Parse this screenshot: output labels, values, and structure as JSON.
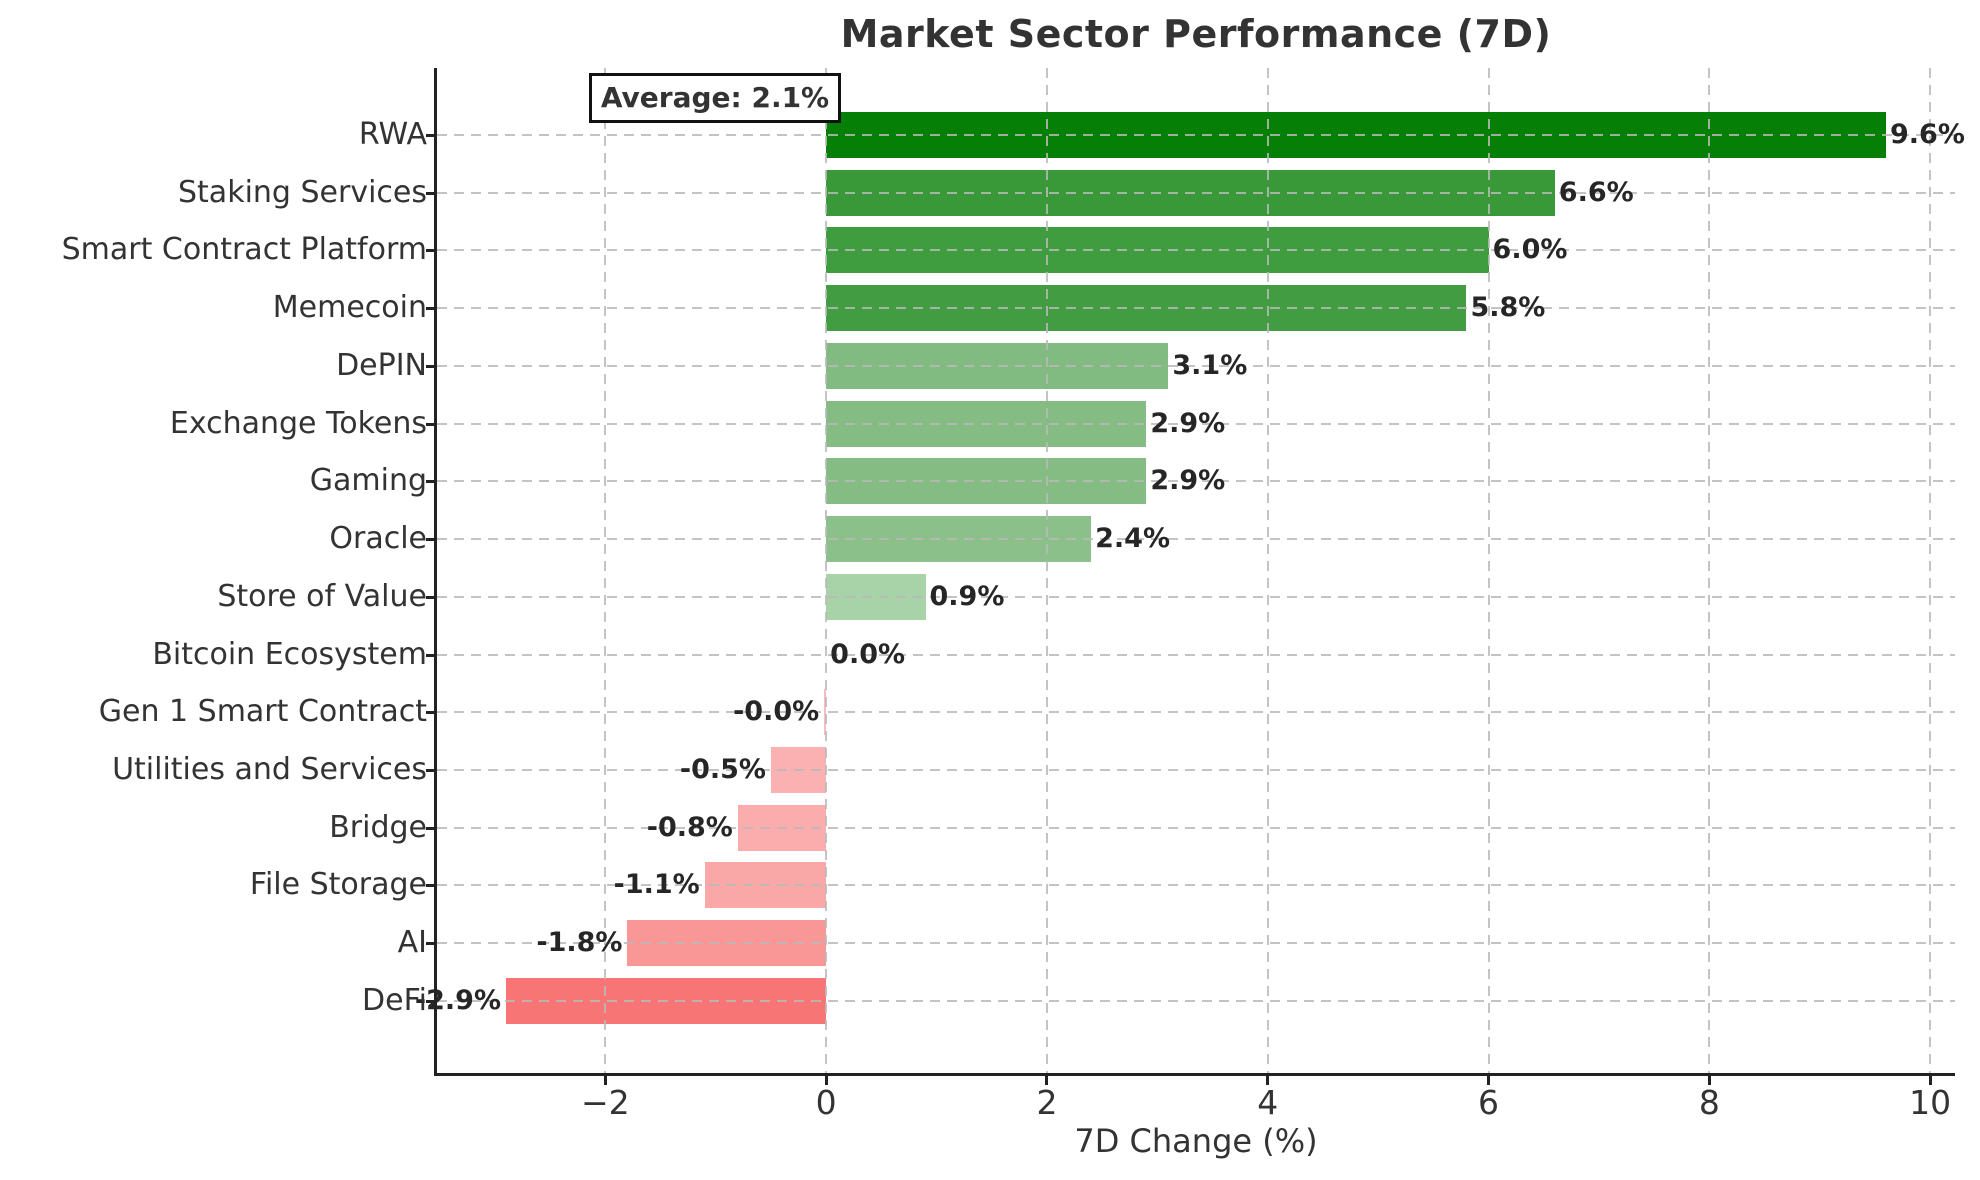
{
  "chart_data": {
    "type": "bar",
    "orientation": "horizontal",
    "title": "Market Sector Performance (7D)",
    "xlabel": "7D Change (%)",
    "annotation": "Average: 2.1%",
    "average_pct": 2.1,
    "categories": [
      "RWA",
      "Staking Services",
      "Smart Contract Platform",
      "Memecoin",
      "DePIN",
      "Exchange Tokens",
      "Gaming",
      "Oracle",
      "Store of Value",
      "Bitcoin Ecosystem",
      "Gen 1 Smart Contract",
      "Utilities and Services",
      "Bridge",
      "File Storage",
      "AI",
      "DeFi"
    ],
    "values": [
      9.6,
      6.6,
      6.0,
      5.8,
      3.1,
      2.9,
      2.9,
      2.4,
      0.9,
      0.0,
      -0.0,
      -0.5,
      -0.8,
      -1.1,
      -1.8,
      -2.9
    ],
    "value_labels": [
      "9.6%",
      "6.6%",
      "6.0%",
      "5.8%",
      "3.1%",
      "2.9%",
      "2.9%",
      "2.4%",
      "0.9%",
      "0.0%",
      "-0.0%",
      "-0.5%",
      "-0.8%",
      "-1.1%",
      "-1.8%",
      "-2.9%"
    ],
    "bar_colors": [
      "#057f05",
      "#399939",
      "#3f9c3f",
      "#429d42",
      "#82bb82",
      "#84bc84",
      "#84bc84",
      "#8bc08b",
      "#a8d2a8",
      "#b7dab7",
      "#fcbcbc",
      "#fbb1b1",
      "#fbadad",
      "#faa7a7",
      "#f99797",
      "#f87575"
    ],
    "xlim": [
      -3.525,
      10.225
    ],
    "xticks": [
      -2,
      0,
      2,
      4,
      6,
      8,
      10
    ],
    "xtick_labels": [
      "−2",
      "0",
      "2",
      "4",
      "6",
      "8",
      "10"
    ],
    "grid": true,
    "legend": false,
    "colors": {
      "positive_strong": "#057f05",
      "negative_strong": "#f87575",
      "grid": "#c9c9c9",
      "spine": "#222222",
      "text": "#333333"
    }
  }
}
